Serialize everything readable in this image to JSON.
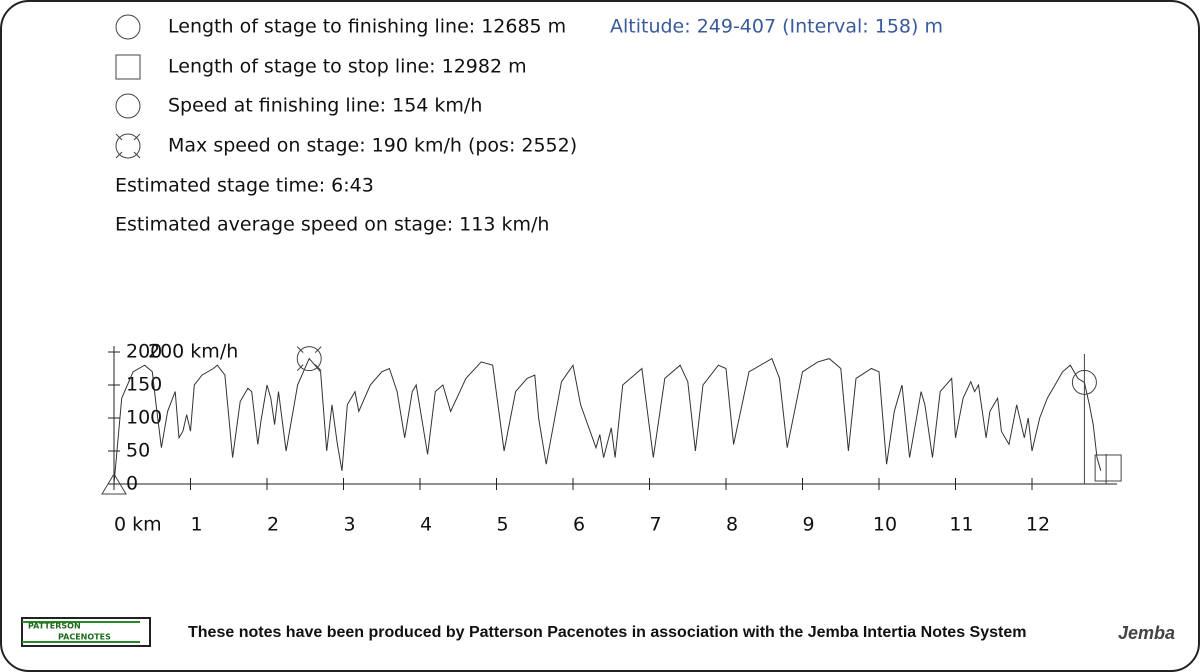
{
  "info": {
    "lines": [
      "Length of stage to finishing line: 12685 m",
      "Length of stage to stop line: 12982 m",
      "Speed at finishing line: 154 km/h",
      "Max speed on stage: 190 km/h (pos: 2552)",
      "Estimated stage time: 6:43",
      "Estimated average speed on stage: 113 km/h"
    ],
    "altitude": "Altitude: 249-407 (Interval: 158) m"
  },
  "chart_data": {
    "type": "line",
    "y_label": "200 km/h",
    "color": "#333333",
    "x": [
      0,
      0.1,
      0.25,
      0.4,
      0.5,
      0.55,
      0.62,
      0.7,
      0.8,
      0.85,
      0.9,
      0.95,
      1.0,
      1.05,
      1.15,
      1.3,
      1.35,
      1.45,
      1.55,
      1.65,
      1.75,
      1.8,
      1.88,
      1.92,
      2.0,
      2.05,
      2.1,
      2.15,
      2.25,
      2.4,
      2.552,
      2.7,
      2.78,
      2.85,
      2.92,
      2.98,
      3.05,
      3.15,
      3.2,
      3.35,
      3.5,
      3.6,
      3.7,
      3.8,
      3.9,
      3.95,
      4.1,
      4.2,
      4.3,
      4.4,
      4.5,
      4.6,
      4.8,
      4.95,
      5.1,
      5.25,
      5.4,
      5.5,
      5.55,
      5.65,
      5.85,
      6.0,
      6.1,
      6.3,
      6.35,
      6.4,
      6.5,
      6.55,
      6.65,
      6.8,
      6.9,
      7.05,
      7.2,
      7.4,
      7.5,
      7.6,
      7.7,
      7.9,
      8.0,
      8.1,
      8.3,
      8.6,
      8.7,
      8.8,
      9.0,
      9.2,
      9.35,
      9.5,
      9.6,
      9.7,
      9.9,
      10.0,
      10.1,
      10.2,
      10.25,
      10.3,
      10.4,
      10.55,
      10.6,
      10.7,
      10.8,
      10.95,
      11.0,
      11.1,
      11.2,
      11.25,
      11.3,
      11.4,
      11.45,
      11.55,
      11.6,
      11.7,
      11.8,
      11.9,
      11.95,
      12.0,
      12.1,
      12.2,
      12.3,
      12.4,
      12.5,
      12.6,
      12.685,
      12.75,
      12.8,
      12.85,
      12.9
    ],
    "values": [
      0,
      130,
      170,
      180,
      170,
      120,
      55,
      110,
      140,
      70,
      80,
      105,
      80,
      150,
      165,
      175,
      180,
      165,
      40,
      125,
      145,
      140,
      60,
      95,
      150,
      130,
      90,
      140,
      50,
      150,
      190,
      170,
      50,
      120,
      60,
      20,
      120,
      140,
      110,
      150,
      170,
      175,
      140,
      70,
      140,
      150,
      45,
      140,
      150,
      110,
      135,
      160,
      185,
      180,
      50,
      140,
      160,
      165,
      100,
      30,
      155,
      180,
      120,
      55,
      75,
      40,
      85,
      40,
      150,
      165,
      175,
      40,
      160,
      180,
      155,
      50,
      150,
      180,
      175,
      60,
      170,
      190,
      160,
      55,
      170,
      185,
      190,
      175,
      50,
      160,
      175,
      170,
      30,
      110,
      130,
      150,
      40,
      140,
      120,
      40,
      140,
      160,
      70,
      130,
      155,
      140,
      150,
      70,
      110,
      130,
      80,
      60,
      120,
      70,
      100,
      50,
      100,
      130,
      150,
      170,
      180,
      160,
      154,
      120,
      90,
      40,
      20
    ],
    "xlim": [
      0,
      13
    ],
    "ylim": [
      0,
      200
    ],
    "xticks": [
      {
        "value": 0,
        "label": "0 km"
      },
      1,
      2,
      3,
      4,
      5,
      6,
      7,
      8,
      9,
      10,
      11,
      12
    ],
    "yticks": [
      0,
      50,
      100,
      150,
      200
    ],
    "max_marker": {
      "x": 2.552,
      "y": 190
    },
    "finish_marker": {
      "x": 12.685,
      "y": 154
    },
    "stop_marker": {
      "x": 12.982
    }
  },
  "footer": {
    "text": "These notes have been produced by Patterson Pacenotes in association with the Jemba Intertia Notes System",
    "logo_left_top": "PATTERSON",
    "logo_left_bottom": "PACENOTES",
    "logo_right": "Jemba"
  }
}
